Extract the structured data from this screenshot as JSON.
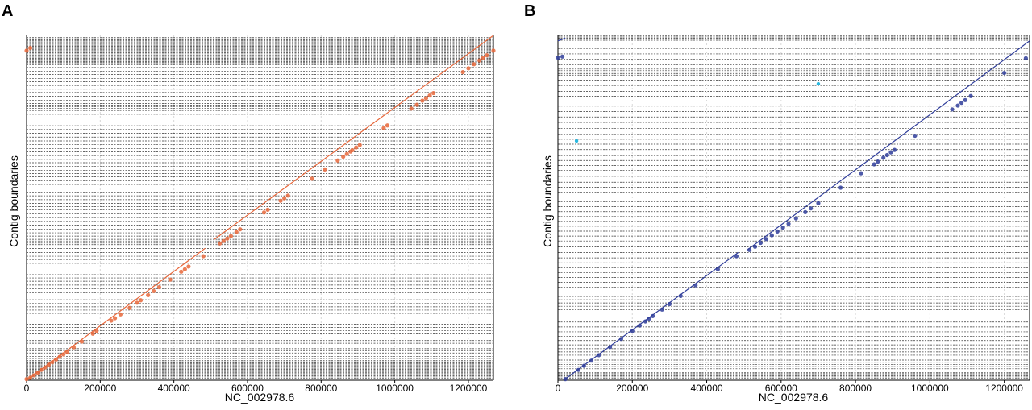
{
  "chart_data": [
    {
      "panel": "A",
      "type": "scatter",
      "xlabel": "NC_002978.6",
      "ylabel": "Contig boundaries",
      "xlim": [
        0,
        1268000
      ],
      "ylim": [
        0,
        1268000
      ],
      "xticks": [
        0,
        200000,
        400000,
        600000,
        800000,
        1000000,
        1200000
      ],
      "xtick_labels": [
        "0",
        "200000",
        "400000",
        "600000",
        "800000",
        "1000000",
        "1200000"
      ],
      "grid": true,
      "contig_boundaries": [
        0,
        4000,
        8000,
        12000,
        16000,
        20000,
        24000,
        28000,
        32000,
        36000,
        40000,
        44000,
        48000,
        52000,
        56000,
        60000,
        64000,
        68000,
        72000,
        80000,
        88000,
        96000,
        100000,
        108000,
        116000,
        126000,
        136000,
        146000,
        156000,
        170000,
        182000,
        194000,
        206000,
        218000,
        232000,
        246000,
        258000,
        270000,
        282000,
        296000,
        310000,
        322000,
        336000,
        350000,
        364000,
        376000,
        388000,
        402000,
        416000,
        430000,
        444000,
        456000,
        470000,
        484000,
        494000,
        500000,
        506000,
        512000,
        518000,
        530000,
        542000,
        556000,
        570000,
        584000,
        598000,
        612000,
        626000,
        638000,
        650000,
        664000,
        678000,
        692000,
        706000,
        720000,
        734000,
        748000,
        760000,
        772000,
        786000,
        800000,
        812000,
        826000,
        840000,
        852000,
        866000,
        880000,
        894000,
        908000,
        922000,
        936000,
        950000,
        964000,
        978000,
        992000,
        1000000,
        1006000,
        1012000,
        1018000,
        1030000,
        1044000,
        1058000,
        1070000,
        1084000,
        1098000,
        1110000,
        1124000,
        1136000,
        1150000,
        1160000,
        1164000,
        1168000,
        1172000,
        1176000,
        1180000,
        1184000,
        1188000,
        1192000,
        1196000,
        1200000,
        1204000,
        1208000,
        1212000,
        1216000,
        1220000,
        1224000,
        1228000,
        1232000,
        1236000,
        1240000,
        1244000,
        1248000,
        1252000,
        1256000,
        1260000
      ],
      "segments": [
        {
          "x": [
            0,
            485000
          ],
          "y": [
            0,
            485000
          ]
        },
        {
          "x": [
            510000,
            1268000
          ],
          "y": [
            518000,
            1268000
          ]
        }
      ],
      "points": [
        [
          0,
          4000
        ],
        [
          10000,
          9000
        ],
        [
          20000,
          18000
        ],
        [
          30000,
          28000
        ],
        [
          40000,
          38000
        ],
        [
          50000,
          47000
        ],
        [
          60000,
          57000
        ],
        [
          70000,
          66000
        ],
        [
          80000,
          76000
        ],
        [
          90000,
          86000
        ],
        [
          100000,
          95000
        ],
        [
          110000,
          104000
        ],
        [
          128000,
          121000
        ],
        [
          150000,
          142000
        ],
        [
          180000,
          171000
        ],
        [
          190000,
          181000
        ],
        [
          230000,
          219000
        ],
        [
          240000,
          228000
        ],
        [
          255000,
          242000
        ],
        [
          280000,
          266000
        ],
        [
          300000,
          285000
        ],
        [
          310000,
          294000
        ],
        [
          330000,
          313000
        ],
        [
          345000,
          328000
        ],
        [
          360000,
          342000
        ],
        [
          390000,
          370000
        ],
        [
          420000,
          399000
        ],
        [
          430000,
          408000
        ],
        [
          440000,
          418000
        ],
        [
          480000,
          456000
        ],
        [
          525000,
          503000
        ],
        [
          535000,
          512000
        ],
        [
          545000,
          521000
        ],
        [
          555000,
          530000
        ],
        [
          570000,
          545000
        ],
        [
          580000,
          555000
        ],
        [
          645000,
          617000
        ],
        [
          655000,
          627000
        ],
        [
          690000,
          660000
        ],
        [
          700000,
          669000
        ],
        [
          710000,
          679000
        ],
        [
          775000,
          741000
        ],
        [
          810000,
          775000
        ],
        [
          845000,
          808000
        ],
        [
          860000,
          822000
        ],
        [
          870000,
          832000
        ],
        [
          880000,
          841000
        ],
        [
          885000,
          846000
        ],
        [
          895000,
          856000
        ],
        [
          905000,
          865000
        ],
        [
          970000,
          927000
        ],
        [
          980000,
          937000
        ],
        [
          1045000,
          999000
        ],
        [
          1060000,
          1013000
        ],
        [
          1075000,
          1028000
        ],
        [
          1085000,
          1037000
        ],
        [
          1095000,
          1047000
        ],
        [
          1105000,
          1056000
        ],
        [
          1185000,
          1133000
        ],
        [
          1200000,
          1147000
        ],
        [
          1215000,
          1162000
        ],
        [
          1230000,
          1176000
        ],
        [
          1240000,
          1186000
        ],
        [
          1250000,
          1195000
        ],
        [
          1268000,
          1212000
        ],
        [
          0,
          1212000
        ],
        [
          10000,
          1222000
        ]
      ],
      "color": "#e8673a"
    },
    {
      "panel": "B",
      "type": "scatter",
      "xlabel": "NC_002978.6",
      "ylabel": "Contig boundaries",
      "xlim": [
        0,
        1268000
      ],
      "ylim": [
        0,
        1268000
      ],
      "xticks": [
        0,
        200000,
        400000,
        600000,
        800000,
        1000000,
        1200000
      ],
      "xtick_labels": [
        "0",
        "200000",
        "400000",
        "600000",
        "800000",
        "1000000",
        "1200000"
      ],
      "grid": true,
      "contig_boundaries": [
        0,
        4000,
        8000,
        12000,
        16000,
        20000,
        24000,
        28000,
        34000,
        42000,
        50000,
        58000,
        66000,
        74000,
        82000,
        92000,
        104000,
        116000,
        130000,
        146000,
        162000,
        178000,
        196000,
        214000,
        232000,
        248000,
        260000,
        272000,
        284000,
        296000,
        308000,
        324000,
        342000,
        360000,
        378000,
        396000,
        414000,
        432000,
        450000,
        470000,
        490000,
        512000,
        530000,
        548000,
        566000,
        584000,
        602000,
        620000,
        638000,
        656000,
        674000,
        692000,
        710000,
        728000,
        750000,
        772000,
        790000,
        808000,
        826000,
        848000,
        868000,
        886000,
        904000,
        926000,
        948000,
        968000,
        988000,
        1008000,
        1026000,
        1044000,
        1062000,
        1084000,
        1104000,
        1116000,
        1122000,
        1128000,
        1134000,
        1140000,
        1146000,
        1160000,
        1180000,
        1200000,
        1220000,
        1240000,
        1250000,
        1254000,
        1258000,
        1262000,
        1266000
      ],
      "segments": [
        {
          "x": [
            15000,
            485000
          ],
          "y": [
            0,
            470000
          ]
        },
        {
          "x": [
            510000,
            1268000
          ],
          "y": [
            480000,
            1248000
          ]
        },
        {
          "x": [
            0,
            20000
          ],
          "y": [
            1248000,
            1258000
          ]
        }
      ],
      "points": [
        [
          20000,
          4000
        ],
        [
          55000,
          38000
        ],
        [
          70000,
          53000
        ],
        [
          90000,
          72000
        ],
        [
          110000,
          92000
        ],
        [
          140000,
          122000
        ],
        [
          170000,
          152000
        ],
        [
          200000,
          181000
        ],
        [
          220000,
          201000
        ],
        [
          235000,
          216000
        ],
        [
          245000,
          226000
        ],
        [
          255000,
          236000
        ],
        [
          280000,
          260000
        ],
        [
          300000,
          280000
        ],
        [
          330000,
          310000
        ],
        [
          370000,
          349000
        ],
        [
          430000,
          408000
        ],
        [
          480000,
          456000
        ],
        [
          515000,
          479000
        ],
        [
          530000,
          491000
        ],
        [
          545000,
          505000
        ],
        [
          560000,
          519000
        ],
        [
          575000,
          533000
        ],
        [
          590000,
          547000
        ],
        [
          605000,
          561000
        ],
        [
          620000,
          575000
        ],
        [
          640000,
          595000
        ],
        [
          665000,
          618000
        ],
        [
          680000,
          632000
        ],
        [
          700000,
          651000
        ],
        [
          760000,
          708000
        ],
        [
          815000,
          761000
        ],
        [
          850000,
          794000
        ],
        [
          860000,
          804000
        ],
        [
          875000,
          818000
        ],
        [
          885000,
          828000
        ],
        [
          895000,
          838000
        ],
        [
          905000,
          847000
        ],
        [
          960000,
          899000
        ],
        [
          1060000,
          996000
        ],
        [
          1075000,
          1010000
        ],
        [
          1085000,
          1020000
        ],
        [
          1095000,
          1030000
        ],
        [
          1110000,
          1045000
        ],
        [
          1200000,
          1130000
        ],
        [
          1258000,
          1184000
        ],
        [
          0,
          1186000
        ],
        [
          12000,
          1190000
        ]
      ],
      "outliers": [
        [
          50000,
          880000
        ],
        [
          700000,
          1090000
        ]
      ],
      "color": "#2f3d9a",
      "outlier_color": "#29b8e0"
    }
  ],
  "panels": {
    "A": {
      "letter": "A"
    },
    "B": {
      "letter": "B"
    }
  }
}
